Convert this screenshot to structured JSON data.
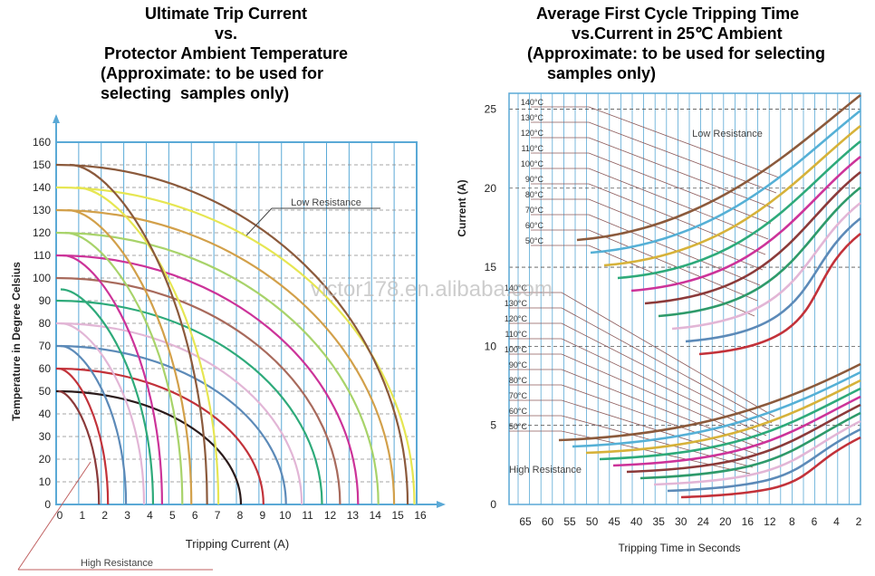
{
  "left_title": {
    "line1": "Ultimate Trip Current",
    "line2": "vs.",
    "line3": "Protector Ambient Temperature",
    "line4": "(Approximate: to be used for",
    "line5": "selecting  samples only)"
  },
  "right_title": {
    "line1": "Average First Cycle Tripping Time",
    "line2": "vs.Current in 25℃ Ambient",
    "line3": "(Approximate: to be used for selecting",
    "line4": "samples only)"
  },
  "watermark": "victor178.en.alibaba.com",
  "chart_data": [
    {
      "type": "line",
      "xlabel": "Tripping Current (A)",
      "ylabel": "Temperature in Degree Celsius",
      "xlim": [
        0,
        16
      ],
      "ylim": [
        0,
        160
      ],
      "x_ticks": [
        0,
        1,
        2,
        3,
        4,
        5,
        6,
        7,
        8,
        9,
        10,
        11,
        12,
        13,
        14,
        15,
        16
      ],
      "y_ticks": [
        0,
        10,
        20,
        30,
        40,
        50,
        60,
        70,
        80,
        90,
        100,
        110,
        120,
        130,
        140,
        150,
        160
      ],
      "grid": true,
      "annotations": [
        "Low Resistance",
        "High Resistance"
      ],
      "series": [
        {
          "color": "#e6e652",
          "values": [
            {
              "x": 0,
              "y": 140
            },
            {
              "x": 15.9,
              "y": 0
            }
          ]
        },
        {
          "color": "#8b5a3c",
          "values": [
            {
              "x": 0,
              "y": 150
            },
            {
              "x": 15.6,
              "y": 0
            }
          ]
        },
        {
          "color": "#d2a04a",
          "values": [
            {
              "x": 0,
              "y": 130
            },
            {
              "x": 15.0,
              "y": 0
            }
          ]
        },
        {
          "color": "#a8d36a",
          "values": [
            {
              "x": 0,
              "y": 120
            },
            {
              "x": 14.3,
              "y": 0
            }
          ]
        },
        {
          "color": "#cc3399",
          "values": [
            {
              "x": 0,
              "y": 110
            },
            {
              "x": 13.4,
              "y": 0
            }
          ]
        },
        {
          "color": "#a86a5c",
          "values": [
            {
              "x": 0,
              "y": 100
            },
            {
              "x": 12.6,
              "y": 0
            }
          ]
        },
        {
          "color": "#2eaa7a",
          "values": [
            {
              "x": 0,
              "y": 90
            },
            {
              "x": 11.8,
              "y": 0
            }
          ]
        },
        {
          "color": "#e2b6d6",
          "values": [
            {
              "x": 0,
              "y": 80
            },
            {
              "x": 10.9,
              "y": 0
            }
          ]
        },
        {
          "color": "#5c8ab8",
          "values": [
            {
              "x": 0,
              "y": 70
            },
            {
              "x": 10.2,
              "y": 0
            }
          ]
        },
        {
          "color": "#c2323a",
          "values": [
            {
              "x": 0,
              "y": 60
            },
            {
              "x": 9.2,
              "y": 0
            }
          ]
        },
        {
          "color": "#2a1a1a",
          "values": [
            {
              "x": 0,
              "y": 50
            },
            {
              "x": 8.2,
              "y": 0
            }
          ]
        },
        {
          "color": "#e6e652",
          "values": [
            {
              "x": 7.2,
              "y": 0
            },
            {
              "x": 0.9,
              "y": 140
            }
          ]
        },
        {
          "color": "#8b5a3c",
          "values": [
            {
              "x": 6.7,
              "y": 0
            },
            {
              "x": 0.6,
              "y": 150
            }
          ]
        },
        {
          "color": "#d2a04a",
          "values": [
            {
              "x": 6.0,
              "y": 0
            },
            {
              "x": 0.5,
              "y": 130
            }
          ]
        },
        {
          "color": "#a8d36a",
          "values": [
            {
              "x": 5.6,
              "y": 0
            },
            {
              "x": 0.4,
              "y": 120
            }
          ]
        },
        {
          "color": "#cc3399",
          "values": [
            {
              "x": 4.7,
              "y": 0
            },
            {
              "x": 0.3,
              "y": 110
            }
          ]
        },
        {
          "color": "#2eaa7a",
          "values": [
            {
              "x": 4.3,
              "y": 0
            },
            {
              "x": 0.2,
              "y": 95
            }
          ]
        },
        {
          "color": "#e2b6d6",
          "values": [
            {
              "x": 3.9,
              "y": 0
            },
            {
              "x": 0.2,
              "y": 80
            }
          ]
        },
        {
          "color": "#5c8ab8",
          "values": [
            {
              "x": 3.1,
              "y": 0
            },
            {
              "x": 0.2,
              "y": 70
            }
          ]
        },
        {
          "color": "#c2323a",
          "values": [
            {
              "x": 2.3,
              "y": 0
            },
            {
              "x": 0.1,
              "y": 60
            }
          ]
        },
        {
          "color": "#8b3a3a",
          "values": [
            {
              "x": 1.9,
              "y": 0
            },
            {
              "x": 0.1,
              "y": 50
            }
          ]
        }
      ]
    },
    {
      "type": "line",
      "xlabel": "Tripping Time in Seconds",
      "ylabel": "Current (A)",
      "x_tick_labels": [
        "65",
        "60",
        "55",
        "50",
        "45",
        "40",
        "35",
        "30",
        "24",
        "20",
        "16",
        "12",
        "8",
        "6",
        "4",
        "2"
      ],
      "y_ticks": [
        0,
        5,
        10,
        15,
        20,
        25
      ],
      "ylim": [
        0,
        26
      ],
      "grid": true,
      "annotations": [
        "Low Resistance",
        "High Resistance"
      ],
      "low_resistance_labels": [
        "140°C",
        "130°C",
        "120°C",
        "110°C",
        "100°C",
        "90°C",
        "80°C",
        "70°C",
        "60°C",
        "50°C"
      ],
      "high_resistance_labels": [
        "140°C",
        "130°C",
        "120°C",
        "110°C",
        "100°C",
        "90°C",
        "80°C",
        "70°C",
        "60°C",
        "50°C"
      ],
      "series_colors": [
        "#8b5a3c",
        "#55b0d6",
        "#d6b23a",
        "#2eaa7a",
        "#cc3399",
        "#8b3a3a",
        "#2e9a6a",
        "#e2b6d6",
        "#5c8ab8",
        "#c2323a"
      ]
    }
  ]
}
